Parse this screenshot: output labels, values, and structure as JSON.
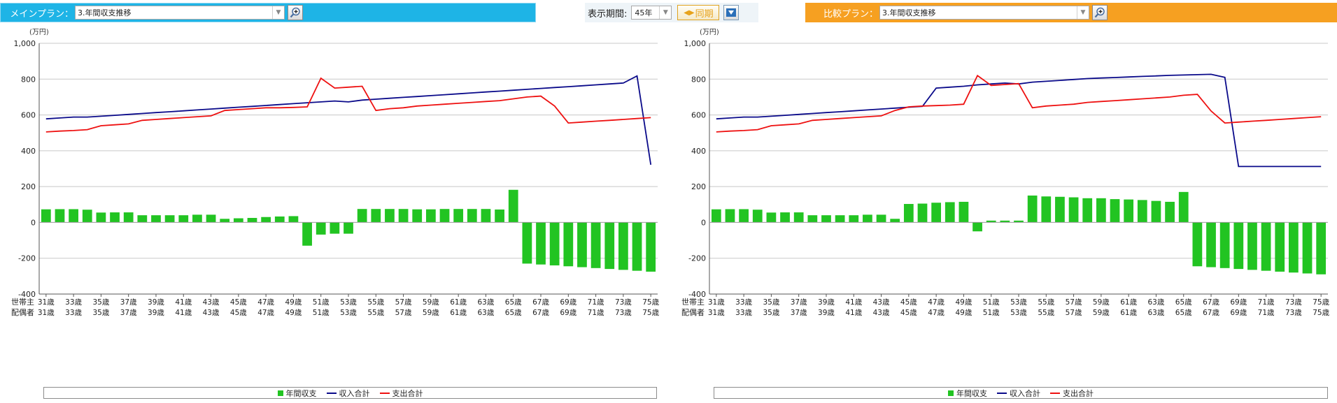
{
  "main_plan": {
    "label": "メインプラン：",
    "selected": "3.年間収支推移"
  },
  "compare_plan": {
    "label": "比較プラン：",
    "selected": "3.年間収支推移"
  },
  "period": {
    "label": "表示期間:",
    "value": "45年",
    "sync_label": "同期"
  },
  "colors": {
    "main_bar": "#1eb4e6",
    "compare_bar": "#f6a021",
    "bars": "#22c422",
    "income": "#0a0a8a",
    "expense": "#ee1111"
  },
  "icons": {
    "zoom": "magnifier-plus-icon",
    "dropdown": "chevron-down-icon",
    "sync": "sync-arrows-icon",
    "collapse": "triangle-down-icon"
  },
  "chart_data": [
    {
      "type": "bar+line",
      "unit_label": "(万円)",
      "ylim": [
        -400,
        1000
      ],
      "yticks": [
        "1,000",
        "800",
        "600",
        "400",
        "200",
        "0",
        "-200",
        "-400"
      ],
      "grid": true,
      "row_labels": [
        "世帯主",
        "配偶者"
      ],
      "x_labels_householder": [
        "31歳",
        "33歳",
        "35歳",
        "37歳",
        "39歳",
        "41歳",
        "43歳",
        "45歳",
        "47歳",
        "49歳",
        "51歳",
        "53歳",
        "55歳",
        "57歳",
        "59歳",
        "61歳",
        "63歳",
        "65歳",
        "67歳",
        "69歳",
        "71歳",
        "73歳",
        "75歳"
      ],
      "x_labels_spouse": [
        "31歳",
        "33歳",
        "35歳",
        "37歳",
        "39歳",
        "41歳",
        "43歳",
        "45歳",
        "47歳",
        "49歳",
        "51歳",
        "53歳",
        "55歳",
        "57歳",
        "59歳",
        "61歳",
        "63歳",
        "65歳",
        "67歳",
        "69歳",
        "71歳",
        "73歳",
        "75歳"
      ],
      "legend": [
        "年間収支",
        "収入合計",
        "支出合計"
      ],
      "legend_position": "bottom",
      "series": [
        {
          "name": "年間収支",
          "kind": "bar",
          "values": [
            73,
            74,
            74,
            71,
            55,
            56,
            56,
            40,
            40,
            40,
            40,
            43,
            43,
            20,
            23,
            25,
            30,
            33,
            35,
            -130,
            -68,
            -63,
            -63,
            75,
            75,
            75,
            75,
            73,
            73,
            75,
            75,
            75,
            75,
            72,
            182,
            -230,
            -235,
            -240,
            -245,
            -250,
            -255,
            -260,
            -265,
            -270,
            -275
          ]
        },
        {
          "name": "収入合計",
          "kind": "line",
          "values": [
            578,
            583,
            588,
            588,
            593,
            598,
            603,
            608,
            613,
            618,
            623,
            628,
            633,
            638,
            643,
            648,
            653,
            658,
            663,
            668,
            673,
            678,
            673,
            683,
            688,
            693,
            698,
            703,
            708,
            713,
            718,
            723,
            728,
            733,
            738,
            743,
            748,
            753,
            758,
            763,
            768,
            773,
            778,
            818,
            322
          ]
        },
        {
          "name": "支出合計",
          "kind": "line",
          "values": [
            505,
            510,
            513,
            518,
            540,
            545,
            550,
            570,
            575,
            580,
            585,
            590,
            595,
            625,
            630,
            635,
            640,
            640,
            642,
            645,
            805,
            750,
            755,
            760,
            625,
            635,
            640,
            650,
            655,
            660,
            665,
            670,
            675,
            680,
            690,
            700,
            705,
            650,
            555,
            560,
            565,
            570,
            575,
            580,
            585
          ]
        }
      ]
    },
    {
      "type": "bar+line",
      "unit_label": "(万円)",
      "ylim": [
        -400,
        1000
      ],
      "yticks": [
        "1,000",
        "800",
        "600",
        "400",
        "200",
        "0",
        "-200",
        "-400"
      ],
      "grid": true,
      "row_labels": [
        "世帯主",
        "配偶者"
      ],
      "x_labels_householder": [
        "31歳",
        "33歳",
        "35歳",
        "37歳",
        "39歳",
        "41歳",
        "43歳",
        "45歳",
        "47歳",
        "49歳",
        "51歳",
        "53歳",
        "55歳",
        "57歳",
        "59歳",
        "61歳",
        "63歳",
        "65歳",
        "67歳",
        "69歳",
        "71歳",
        "73歳",
        "75歳"
      ],
      "x_labels_spouse": [
        "31歳",
        "33歳",
        "35歳",
        "37歳",
        "39歳",
        "41歳",
        "43歳",
        "45歳",
        "47歳",
        "49歳",
        "51歳",
        "53歳",
        "55歳",
        "57歳",
        "59歳",
        "61歳",
        "63歳",
        "65歳",
        "67歳",
        "69歳",
        "71歳",
        "73歳",
        "75歳"
      ],
      "legend": [
        "年間収支",
        "収入合計",
        "支出合計"
      ],
      "legend_position": "bottom",
      "series": [
        {
          "name": "年間収支",
          "kind": "bar",
          "values": [
            73,
            74,
            74,
            71,
            55,
            56,
            56,
            40,
            40,
            40,
            40,
            43,
            43,
            20,
            103,
            105,
            110,
            113,
            115,
            -50,
            10,
            10,
            10,
            150,
            145,
            143,
            140,
            135,
            135,
            130,
            128,
            125,
            120,
            115,
            170,
            -245,
            -250,
            -255,
            -260,
            -265,
            -270,
            -275,
            -280,
            -285,
            -290
          ]
        },
        {
          "name": "収入合計",
          "kind": "line",
          "values": [
            578,
            583,
            588,
            588,
            593,
            598,
            603,
            608,
            613,
            618,
            623,
            628,
            633,
            638,
            643,
            648,
            750,
            755,
            760,
            768,
            773,
            778,
            773,
            783,
            788,
            793,
            798,
            803,
            806,
            809,
            812,
            815,
            818,
            821,
            823,
            825,
            827,
            810,
            312,
            312,
            312,
            312,
            312,
            312,
            312
          ]
        },
        {
          "name": "支出合計",
          "kind": "line",
          "values": [
            505,
            510,
            513,
            518,
            540,
            545,
            550,
            570,
            575,
            580,
            585,
            590,
            595,
            625,
            645,
            650,
            652,
            655,
            660,
            820,
            765,
            770,
            775,
            640,
            650,
            655,
            660,
            670,
            675,
            680,
            685,
            690,
            695,
            700,
            710,
            715,
            622,
            555,
            560,
            565,
            570,
            575,
            580,
            585,
            590
          ]
        }
      ]
    }
  ]
}
